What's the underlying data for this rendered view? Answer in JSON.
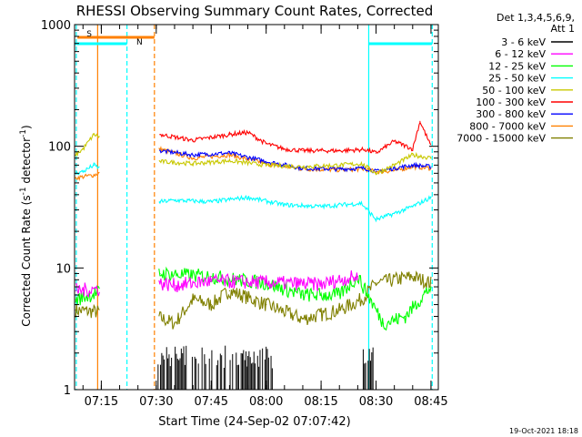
{
  "chart_data": {
    "type": "line",
    "title": "RHESSI Observing Summary Count Rates, Corrected",
    "xlabel": "Start Time (24-Sep-02 07:07:42)",
    "ylabel": "Corrected Count Rate (s",
    "ylabel_sup1": "-1",
    "ylabel_mid": " detector",
    "ylabel_sup2": "-1",
    "ylabel_end": ")",
    "y_scale": "log",
    "ylim": [
      1,
      1000
    ],
    "xlim": [
      "07:07:42",
      "08:47:00"
    ],
    "x_ticks": [
      "07:15",
      "07:30",
      "07:45",
      "08:00",
      "08:15",
      "08:30",
      "08:45"
    ],
    "y_ticks": [
      "1",
      "10",
      "100",
      "1000"
    ],
    "legend_header": [
      "Det 1,3,4,5,6,9,",
      "Att 1"
    ],
    "legend_position": "right",
    "series": [
      {
        "name": "3 - 6 keV",
        "color": "#000000",
        "kind": "black-spikes",
        "x": [
          "07:30:30",
          "07:40:00",
          "07:50:00",
          "08:00:00",
          "08:27:00",
          "08:28:00",
          "08:29:00"
        ],
        "values": [
          1.8,
          1.8,
          1.8,
          1.8,
          1.8,
          1.8,
          1.8
        ]
      },
      {
        "name": "6 - 12 keV",
        "color": "#ff00ff",
        "x": [
          "07:08:00",
          "07:31:00",
          "07:35:00",
          "07:45:00",
          "08:00:00",
          "08:15:00",
          "08:20:00",
          "08:25:00"
        ],
        "values": [
          6.5,
          7.5,
          7.2,
          7.8,
          7.6,
          7.3,
          8.0,
          8.5
        ]
      },
      {
        "name": "12 - 25 keV",
        "color": "#00ff00",
        "x": [
          "07:08:00",
          "07:31:00",
          "07:45:00",
          "08:00:00",
          "08:10:00",
          "08:20:00",
          "08:25:00",
          "08:32:00",
          "08:38:00",
          "08:45:00"
        ],
        "values": [
          5.5,
          9.0,
          8.5,
          7.5,
          6.0,
          6.0,
          8.5,
          3.5,
          4.0,
          7.0
        ]
      },
      {
        "name": "25 - 50 keV",
        "color": "#00ffff",
        "x": [
          "07:08:00",
          "07:10:00",
          "07:13:00",
          "07:31:00",
          "07:35:00",
          "07:45:00",
          "07:55:00",
          "08:05:00",
          "08:15:00",
          "08:26:00",
          "08:30:00",
          "08:35:00",
          "08:40:00",
          "08:45:00"
        ],
        "values": [
          60,
          62,
          70,
          35,
          36,
          35,
          38,
          33,
          32,
          34,
          25,
          28,
          32,
          38
        ]
      },
      {
        "name": "50 - 100 keV",
        "color": "#c8c800",
        "x": [
          "07:08:00",
          "07:10:00",
          "07:13:00",
          "07:31:00",
          "07:40:00",
          "07:50:00",
          "08:00:00",
          "08:10:00",
          "08:20:00",
          "08:26:00",
          "08:30:00",
          "08:35:00",
          "08:40:00",
          "08:45:00"
        ],
        "values": [
          85,
          95,
          125,
          75,
          72,
          76,
          70,
          68,
          70,
          72,
          60,
          70,
          85,
          80
        ]
      },
      {
        "name": "100 - 300 keV",
        "color": "#ff0000",
        "x": [
          "07:31:00",
          "07:40:00",
          "07:50:00",
          "07:55:00",
          "08:00:00",
          "08:05:00",
          "08:10:00",
          "08:20:00",
          "08:27:00",
          "08:30:00",
          "08:35:00",
          "08:40:00",
          "08:42:00",
          "08:45:00"
        ],
        "values": [
          125,
          112,
          125,
          130,
          105,
          95,
          92,
          92,
          94,
          88,
          110,
          95,
          160,
          100
        ]
      },
      {
        "name": "300 - 800 keV",
        "color": "#0000ff",
        "x": [
          "07:31:00",
          "07:40:00",
          "07:50:00",
          "08:00:00",
          "08:10:00",
          "08:20:00",
          "08:27:00",
          "08:30:00",
          "08:35:00",
          "08:40:00",
          "08:45:00"
        ],
        "values": [
          92,
          85,
          88,
          75,
          66,
          65,
          66,
          62,
          66,
          70,
          68
        ]
      },
      {
        "name": "800 - 7000 keV",
        "color": "#ff8000",
        "x": [
          "07:08:00",
          "07:13:00",
          "07:31:00",
          "07:40:00",
          "07:50:00",
          "08:00:00",
          "08:10:00",
          "08:20:00",
          "08:27:00",
          "08:30:00",
          "08:35:00",
          "08:40:00",
          "08:45:00"
        ],
        "values": [
          55,
          58,
          95,
          80,
          85,
          72,
          65,
          64,
          65,
          62,
          63,
          68,
          66
        ]
      },
      {
        "name": "7000 - 15000 keV",
        "color": "#808000",
        "x": [
          "07:08:00",
          "07:30:00",
          "07:35:00",
          "07:40:00",
          "07:45:00",
          "07:50:00",
          "08:00:00",
          "08:10:00",
          "08:20:00",
          "08:26:00",
          "08:30:00",
          "08:40:00",
          "08:45:00"
        ],
        "values": [
          4.5,
          4.0,
          3.5,
          5.5,
          5.0,
          6.5,
          5.0,
          3.8,
          4.5,
          5.5,
          7.5,
          8.5,
          7.5
        ]
      }
    ],
    "annotations": [
      {
        "label": "S",
        "color": "#ff8000",
        "style": "solid",
        "x_start": "07:08:30",
        "x_end": "07:29:30"
      },
      {
        "label": "N",
        "color": "#00ffff",
        "style": "solid",
        "x_start": "07:07:42",
        "x_end": "07:22:00"
      }
    ],
    "vertical_markers": [
      {
        "x": "07:08:10",
        "color": "#00ffff",
        "style": "dashed"
      },
      {
        "x": "07:14:00",
        "color": "#ff8000",
        "style": "solid"
      },
      {
        "x": "07:22:00",
        "color": "#00ffff",
        "style": "dashed"
      },
      {
        "x": "07:29:30",
        "color": "#ff8000",
        "style": "dashed"
      },
      {
        "x": "08:28:00",
        "color": "#00ffff",
        "style": "solid"
      },
      {
        "x": "08:45:20",
        "color": "#00ffff",
        "style": "dashed"
      }
    ],
    "grid": false
  },
  "footer_timestamp": "19-Oct-2021 18:18"
}
